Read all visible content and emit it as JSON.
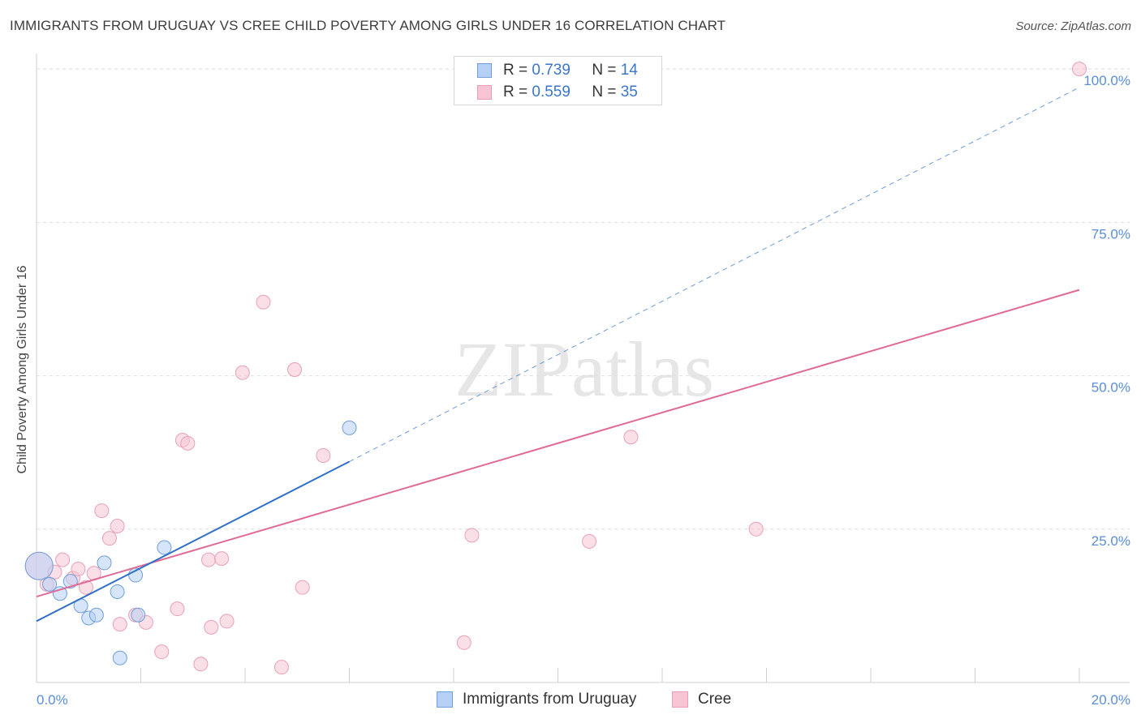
{
  "header": {
    "title": "IMMIGRANTS FROM URUGUAY VS CREE CHILD POVERTY AMONG GIRLS UNDER 16 CORRELATION CHART",
    "source": "Source: ZipAtlas.com"
  },
  "watermark": "ZIPatlas",
  "legend": {
    "uruguay": {
      "r_label": "R =",
      "r_value": "0.739",
      "n_label": "N =",
      "n_value": "14"
    },
    "cree": {
      "r_label": "R =",
      "r_value": "0.559",
      "n_label": "N =",
      "n_value": "35"
    }
  },
  "colors": {
    "uruguay_fill": "#b5cff5",
    "uruguay_stroke": "#6f9fdc",
    "uruguay_line": "#3070c8",
    "cree_fill": "#f8c4d4",
    "cree_stroke": "#e8a0b8",
    "cree_line": "#e06a96",
    "tick_text": "#5b8ed6",
    "grid": "#dddddd"
  },
  "chart_data": {
    "type": "scatter",
    "title": "IMMIGRANTS FROM URUGUAY VS CREE CHILD POVERTY AMONG GIRLS UNDER 16 CORRELATION CHART",
    "xlabel": "",
    "ylabel": "Child Poverty Among Girls Under 16",
    "xlim": [
      0,
      20
    ],
    "ylim": [
      0,
      102
    ],
    "x_tick_labels": [
      {
        "value": 0,
        "label": "0.0%"
      },
      {
        "value": 20,
        "label": "20.0%"
      }
    ],
    "y_tick_labels": [
      {
        "value": 25,
        "label": "25.0%"
      },
      {
        "value": 50,
        "label": "50.0%"
      },
      {
        "value": 75,
        "label": "75.0%"
      },
      {
        "value": 100,
        "label": "100.0%"
      }
    ],
    "series": [
      {
        "name": "Immigrants from Uruguay",
        "points": [
          {
            "x": 0.05,
            "y": 19.0,
            "big": true
          },
          {
            "x": 0.25,
            "y": 16.0
          },
          {
            "x": 0.45,
            "y": 14.5
          },
          {
            "x": 0.65,
            "y": 16.5
          },
          {
            "x": 0.85,
            "y": 12.5
          },
          {
            "x": 1.0,
            "y": 10.5
          },
          {
            "x": 1.15,
            "y": 11.0
          },
          {
            "x": 1.3,
            "y": 19.5
          },
          {
            "x": 1.55,
            "y": 14.8
          },
          {
            "x": 1.95,
            "y": 11.0
          },
          {
            "x": 1.6,
            "y": 4.0
          },
          {
            "x": 1.9,
            "y": 17.5
          },
          {
            "x": 2.45,
            "y": 22.0
          },
          {
            "x": 6.0,
            "y": 41.5
          }
        ],
        "trend": {
          "x0": 0,
          "y0": 10.0,
          "x1": 6.0,
          "y1": 36.0,
          "dashed_to_x": 20.0,
          "dashed_to_y": 97.0
        }
      },
      {
        "name": "Cree",
        "points": [
          {
            "x": 0.05,
            "y": 19.0,
            "big": true
          },
          {
            "x": 0.2,
            "y": 16.0
          },
          {
            "x": 0.35,
            "y": 18.0
          },
          {
            "x": 0.5,
            "y": 20.0
          },
          {
            "x": 0.7,
            "y": 17.0
          },
          {
            "x": 0.8,
            "y": 18.5
          },
          {
            "x": 0.95,
            "y": 15.5
          },
          {
            "x": 1.1,
            "y": 17.8
          },
          {
            "x": 1.25,
            "y": 28.0
          },
          {
            "x": 1.4,
            "y": 23.5
          },
          {
            "x": 1.55,
            "y": 25.5
          },
          {
            "x": 1.6,
            "y": 9.5
          },
          {
            "x": 1.9,
            "y": 11.0
          },
          {
            "x": 2.1,
            "y": 9.8
          },
          {
            "x": 2.4,
            "y": 5.0
          },
          {
            "x": 2.7,
            "y": 12.0
          },
          {
            "x": 2.8,
            "y": 39.5
          },
          {
            "x": 2.9,
            "y": 39.0
          },
          {
            "x": 3.15,
            "y": 3.0
          },
          {
            "x": 3.3,
            "y": 20.0
          },
          {
            "x": 3.35,
            "y": 9.0
          },
          {
            "x": 3.55,
            "y": 20.2
          },
          {
            "x": 3.65,
            "y": 10.0
          },
          {
            "x": 3.95,
            "y": 50.5
          },
          {
            "x": 4.35,
            "y": 62.0
          },
          {
            "x": 4.7,
            "y": 2.5
          },
          {
            "x": 4.95,
            "y": 51.0
          },
          {
            "x": 5.1,
            "y": 15.5
          },
          {
            "x": 5.5,
            "y": 37.0
          },
          {
            "x": 8.2,
            "y": 6.5
          },
          {
            "x": 8.35,
            "y": 24.0
          },
          {
            "x": 10.6,
            "y": 23.0
          },
          {
            "x": 11.4,
            "y": 40.0
          },
          {
            "x": 13.8,
            "y": 25.0
          },
          {
            "x": 20.0,
            "y": 100.0
          }
        ],
        "trend": {
          "x0": 0,
          "y0": 14.0,
          "x1": 20.0,
          "y1": 64.0
        }
      }
    ]
  }
}
